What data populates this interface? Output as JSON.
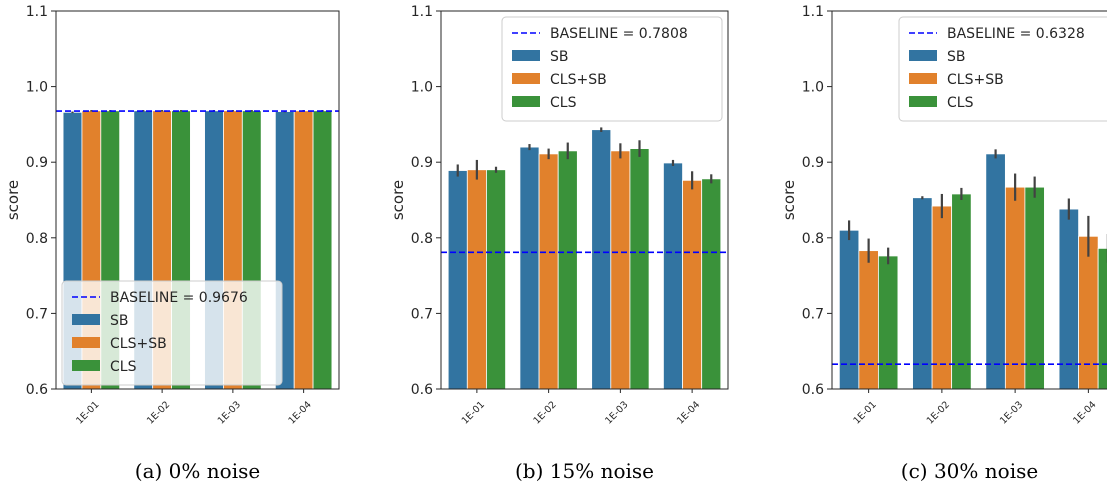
{
  "colors": {
    "SB": "#3274a1",
    "CLS+SB": "#e1812c",
    "CLS": "#3a923a",
    "baseline": "#0000ff",
    "error_bar": "#424242"
  },
  "chart_data": [
    {
      "type": "bar",
      "caption": "(a) 0% noise",
      "ylabel": "score",
      "ylim": [
        0.6,
        1.1
      ],
      "yticks": [
        "0.6",
        "0.7",
        "0.8",
        "0.9",
        "1.0",
        "1.1"
      ],
      "categories": [
        "1E-01",
        "1E-02",
        "1E-03",
        "1E-04"
      ],
      "baseline": {
        "label": "BASELINE = 0.9676",
        "value": 0.9676
      },
      "legend_position": "lower-center",
      "series": [
        {
          "name": "SB",
          "values": [
            0.966,
            0.968,
            0.968,
            0.967
          ],
          "errors": [
            0.001,
            0.001,
            0.001,
            0.001
          ]
        },
        {
          "name": "CLS+SB",
          "values": [
            0.968,
            0.968,
            0.968,
            0.968
          ],
          "errors": [
            0.001,
            0.001,
            0.001,
            0.001
          ]
        },
        {
          "name": "CLS",
          "values": [
            0.968,
            0.968,
            0.968,
            0.968
          ],
          "errors": [
            0.001,
            0.001,
            0.001,
            0.001
          ]
        }
      ]
    },
    {
      "type": "bar",
      "caption": "(b) 15% noise",
      "ylabel": "score",
      "ylim": [
        0.6,
        1.1
      ],
      "yticks": [
        "0.6",
        "0.7",
        "0.8",
        "0.9",
        "1.0",
        "1.1"
      ],
      "categories": [
        "1E-01",
        "1E-02",
        "1E-03",
        "1E-04"
      ],
      "baseline": {
        "label": "BASELINE = 0.7808",
        "value": 0.7808
      },
      "legend_position": "upper-right",
      "series": [
        {
          "name": "SB",
          "values": [
            0.889,
            0.92,
            0.943,
            0.899
          ],
          "errors": [
            0.008,
            0.004,
            0.003,
            0.004
          ]
        },
        {
          "name": "CLS+SB",
          "values": [
            0.89,
            0.911,
            0.915,
            0.876
          ],
          "errors": [
            0.013,
            0.007,
            0.01,
            0.012
          ]
        },
        {
          "name": "CLS",
          "values": [
            0.89,
            0.915,
            0.918,
            0.878
          ],
          "errors": [
            0.004,
            0.011,
            0.011,
            0.006
          ]
        }
      ]
    },
    {
      "type": "bar",
      "caption": "(c) 30% noise",
      "ylabel": "score",
      "ylim": [
        0.6,
        1.1
      ],
      "yticks": [
        "0.6",
        "0.7",
        "0.8",
        "0.9",
        "1.0",
        "1.1"
      ],
      "categories": [
        "1E-01",
        "1E-02",
        "1E-03",
        "1E-04"
      ],
      "baseline": {
        "label": "BASELINE = 0.6328",
        "value": 0.6328
      },
      "legend_position": "upper-right",
      "series": [
        {
          "name": "SB",
          "values": [
            0.81,
            0.853,
            0.911,
            0.838
          ],
          "errors": [
            0.013,
            0.002,
            0.006,
            0.014
          ]
        },
        {
          "name": "CLS+SB",
          "values": [
            0.783,
            0.842,
            0.867,
            0.802
          ],
          "errors": [
            0.016,
            0.016,
            0.018,
            0.027
          ]
        },
        {
          "name": "CLS",
          "values": [
            0.776,
            0.858,
            0.867,
            0.786
          ],
          "errors": [
            0.011,
            0.008,
            0.014,
            0.019
          ]
        }
      ]
    }
  ]
}
